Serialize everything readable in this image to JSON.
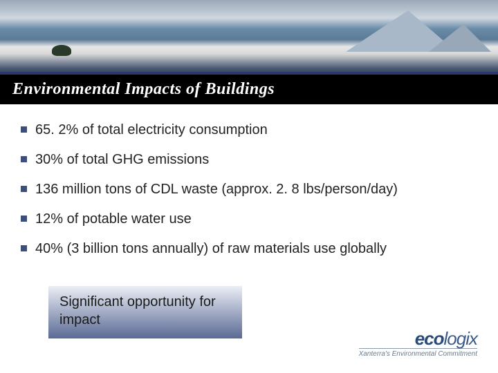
{
  "slide": {
    "title": "Environmental Impacts of Buildings",
    "bullets": [
      "65. 2% of total electricity consumption",
      "30% of total GHG emissions",
      "136 million tons of CDL waste (approx. 2. 8 lbs/person/day)",
      "12% of potable water use",
      "40% (3 billion tons annually) of raw materials use globally"
    ],
    "callout": "Significant opportunity for impact",
    "logo": {
      "text_part1": "eco",
      "text_part2": "logix",
      "tagline": "Xanterra's Environmental Commitment"
    }
  },
  "style": {
    "title_bg": "#000000",
    "title_color": "#ffffff",
    "title_fontsize": 24,
    "bullet_color": "#3d4e7a",
    "bullet_text_color": "#222222",
    "bullet_fontsize": 20,
    "callout_gradient_top": "#ebeef5",
    "callout_gradient_bottom": "#5a6a95",
    "callout_fontsize": 20,
    "logo_color": "#2a4a7a",
    "background": "#ffffff",
    "header_accent": "#2c3968"
  }
}
